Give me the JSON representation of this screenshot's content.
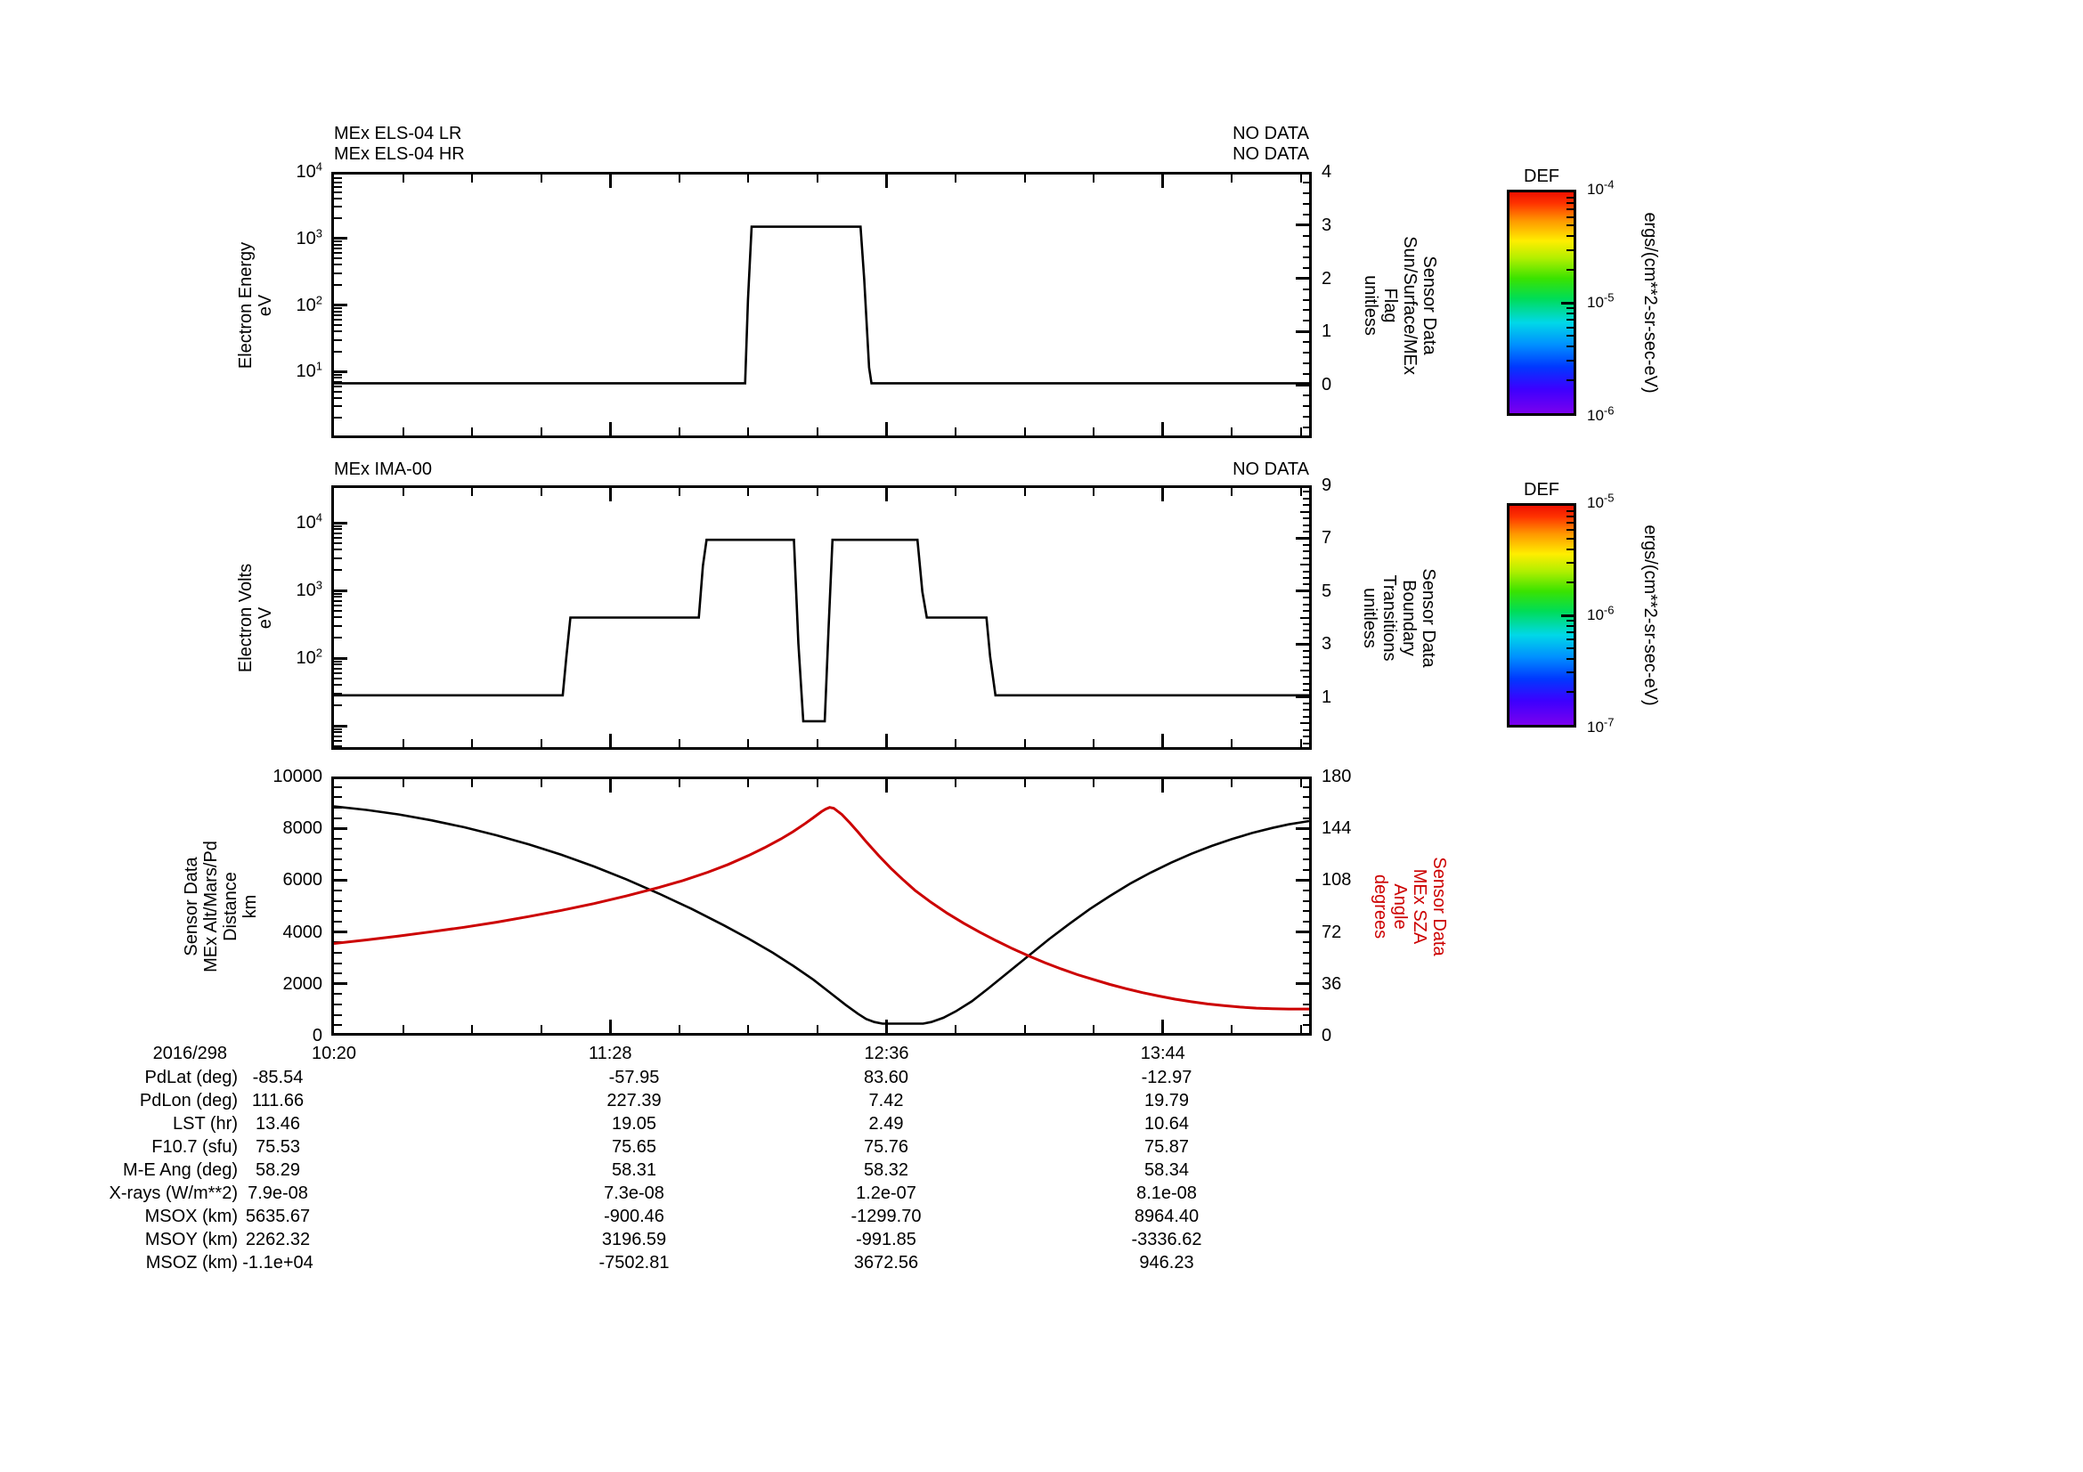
{
  "figure": {
    "background": "#ffffff",
    "colors": {
      "curve_black": "#000000",
      "curve_red": "#cc0000"
    }
  },
  "panels": [
    {
      "titles_left": [
        "MEx ELS-04 LR",
        "MEx ELS-04 HR"
      ],
      "titles_right": [
        "NO DATA",
        "NO DATA"
      ],
      "left_axis": {
        "label_lines": [
          "Electron Energy",
          "eV"
        ],
        "ticks": [
          "10^4",
          "10^3",
          "10^2",
          "10^1"
        ]
      },
      "right_axis": {
        "label_lines": [
          "Sensor Data",
          "Sun/Surface/MEx",
          "Flag",
          "unitless"
        ],
        "ticks": [
          "4",
          "3",
          "2",
          "1",
          "0"
        ],
        "color": "#000000"
      }
    },
    {
      "titles_left": [
        "MEx IMA-00"
      ],
      "titles_right": [
        "NO DATA"
      ],
      "left_axis": {
        "label_lines": [
          "Electron Volts",
          "eV"
        ],
        "ticks": [
          "10^4",
          "10^3",
          "10^2"
        ]
      },
      "right_axis": {
        "label_lines": [
          "Sensor Data",
          "Boundary",
          "Transitions",
          "unitless"
        ],
        "ticks": [
          "9",
          "7",
          "5",
          "3",
          "1"
        ],
        "color": "#000000"
      }
    },
    {
      "titles_left": [],
      "titles_right": [],
      "left_axis": {
        "label_lines": [
          "Sensor Data",
          "MEx Alt/Mars/Pd",
          "Distance",
          "km"
        ],
        "ticks": [
          "10000",
          "8000",
          "6000",
          "4000",
          "2000",
          "0"
        ]
      },
      "right_axis": {
        "label_lines": [
          "Sensor Data",
          "MEx SZA",
          "Angle",
          "degrees"
        ],
        "ticks": [
          "180",
          "144",
          "108",
          "72",
          "36",
          "0"
        ],
        "color": "#cc0000"
      }
    }
  ],
  "x_axis": {
    "date": "2016/298",
    "tick_labels": [
      "10:20",
      "11:28",
      "12:36",
      "13:44"
    ]
  },
  "colorbars": [
    {
      "title": "DEF",
      "ticks": [
        "10^-4",
        "10^-5",
        "10^-6"
      ],
      "units": "ergs/(cm**2-sr-sec-eV)"
    },
    {
      "title": "DEF",
      "ticks": [
        "10^-5",
        "10^-6",
        "10^-7"
      ],
      "units": "ergs/(cm**2-sr-sec-eV)"
    }
  ],
  "table": {
    "date_label": "2016/298",
    "time_columns": [
      "10:20",
      "11:28",
      "12:36",
      "13:44"
    ],
    "rows": [
      {
        "label": "PdLat (deg)",
        "values": [
          "-85.54",
          "-57.95",
          "83.60",
          "-12.97"
        ]
      },
      {
        "label": "PdLon (deg)",
        "values": [
          "111.66",
          "227.39",
          "7.42",
          "19.79"
        ]
      },
      {
        "label": "LST (hr)",
        "values": [
          "13.46",
          "19.05",
          "2.49",
          "10.64"
        ]
      },
      {
        "label": "F10.7 (sfu)",
        "values": [
          "75.53",
          "75.65",
          "75.76",
          "75.87"
        ]
      },
      {
        "label": "M-E Ang (deg)",
        "values": [
          "58.29",
          "58.31",
          "58.32",
          "58.34"
        ]
      },
      {
        "label": "X-rays (W/m**2)",
        "values": [
          "7.9e-08",
          "7.3e-08",
          "1.2e-07",
          "8.1e-08"
        ]
      },
      {
        "label": "MSOX (km)",
        "values": [
          "5635.67",
          "-900.46",
          "-1299.70",
          "8964.40"
        ]
      },
      {
        "label": "MSOY (km)",
        "values": [
          "2262.32",
          "3196.59",
          "-991.85",
          "-3336.62"
        ]
      },
      {
        "label": "MSOZ (km)",
        "values": [
          "-1.1e+04",
          "-7502.81",
          "3672.56",
          "946.23"
        ]
      }
    ]
  },
  "chart_data": [
    {
      "type": "line",
      "title": "MEx ELS-04 Sun/Surface/MEx Flag",
      "x_unit": "minutes after 10:20 (2016/298)",
      "x_range": [
        0,
        240
      ],
      "x_tick_labels": [
        "10:20",
        "11:28",
        "12:36",
        "13:44"
      ],
      "left_axis": {
        "label": "Electron Energy (eV)",
        "scale": "log",
        "range": [
          1,
          10000
        ]
      },
      "right_axis": {
        "label": "Sensor Data Sun/Surface/MEx Flag (unitless)",
        "range": [
          -1,
          4
        ]
      },
      "series": [
        {
          "name": "Sun/Surface/MEx Flag",
          "axis": "right",
          "color": "#000000",
          "points": [
            [
              0,
              0
            ],
            [
              101.2,
              0
            ],
            [
              101.9,
              1.6
            ],
            [
              102.8,
              3
            ],
            [
              129.6,
              3
            ],
            [
              130.5,
              2.0
            ],
            [
              131.7,
              0.3
            ],
            [
              132.3,
              0
            ],
            [
              240,
              0
            ]
          ]
        }
      ]
    },
    {
      "type": "line",
      "title": "MEx IMA-00 Boundary Transitions",
      "x_unit": "minutes after 10:20 (2016/298)",
      "x_range": [
        0,
        240
      ],
      "x_tick_labels": [
        "10:20",
        "11:28",
        "12:36",
        "13:44"
      ],
      "left_axis": {
        "label": "Electron Volts (eV)",
        "scale": "log",
        "range": [
          4.4,
          35000
        ]
      },
      "right_axis": {
        "label": "Sensor Data Boundary Transitions (unitless)",
        "range": [
          -1,
          9
        ]
      },
      "series": [
        {
          "name": "Boundary Transitions",
          "axis": "right",
          "color": "#000000",
          "points": [
            [
              0,
              1
            ],
            [
              56.3,
              1
            ],
            [
              57.2,
              2.5
            ],
            [
              58.2,
              4
            ],
            [
              89.8,
              4
            ],
            [
              90.8,
              6
            ],
            [
              91.7,
              7
            ],
            [
              113.2,
              7
            ],
            [
              114.3,
              3
            ],
            [
              115.5,
              0
            ],
            [
              120.8,
              0
            ],
            [
              121.7,
              3.5
            ],
            [
              122.7,
              7
            ],
            [
              143.6,
              7
            ],
            [
              144.8,
              5
            ],
            [
              145.9,
              4
            ],
            [
              160.6,
              4
            ],
            [
              161.5,
              2.5
            ],
            [
              162.8,
              1
            ],
            [
              240,
              1
            ]
          ]
        }
      ]
    },
    {
      "type": "line",
      "title": "MEx Altitude and Solar Zenith Angle",
      "x_unit": "minutes after 10:20 (2016/298)",
      "x_range": [
        0,
        240
      ],
      "x_tick_labels": [
        "10:20",
        "11:28",
        "12:36",
        "13:44"
      ],
      "left_axis": {
        "label": "Sensor Data MEx Alt/Mars/Pd Distance (km)",
        "range": [
          0,
          10000
        ]
      },
      "right_axis": {
        "label": "Sensor Data MEx SZA Angle (degrees)",
        "range": [
          0,
          180
        ]
      },
      "series": [
        {
          "name": "MEx Alt/Mars/Pd Distance (km)",
          "axis": "left",
          "color": "#000000",
          "points": [
            [
              0,
              8930
            ],
            [
              8,
              8790
            ],
            [
              16,
              8610
            ],
            [
              24,
              8380
            ],
            [
              32,
              8110
            ],
            [
              40,
              7790
            ],
            [
              48,
              7430
            ],
            [
              56,
              7020
            ],
            [
              64,
              6560
            ],
            [
              72,
              6050
            ],
            [
              80,
              5490
            ],
            [
              88,
              4890
            ],
            [
              96,
              4240
            ],
            [
              102,
              3720
            ],
            [
              108,
              3160
            ],
            [
              113,
              2650
            ],
            [
              118,
              2100
            ],
            [
              122,
              1600
            ],
            [
              126,
              1100
            ],
            [
              129,
              750
            ],
            [
              131,
              550
            ],
            [
              133,
              430
            ],
            [
              135,
              370
            ],
            [
              145,
              370
            ],
            [
              147,
              430
            ],
            [
              150,
              600
            ],
            [
              153,
              850
            ],
            [
              157,
              1250
            ],
            [
              161,
              1750
            ],
            [
              166,
              2400
            ],
            [
              171,
              3050
            ],
            [
              176,
              3700
            ],
            [
              181,
              4300
            ],
            [
              186,
              4880
            ],
            [
              191,
              5400
            ],
            [
              196,
              5890
            ],
            [
              201,
              6320
            ],
            [
              206,
              6710
            ],
            [
              211,
              7060
            ],
            [
              216,
              7370
            ],
            [
              221,
              7640
            ],
            [
              226,
              7880
            ],
            [
              231,
              8080
            ],
            [
              235,
              8220
            ],
            [
              238,
              8300
            ],
            [
              240,
              8350
            ]
          ]
        },
        {
          "name": "MEx SZA Angle (degrees)",
          "axis": "right",
          "color": "#cc0000",
          "points": [
            [
              0,
              63.5
            ],
            [
              8,
              66
            ],
            [
              16,
              68.8
            ],
            [
              24,
              71.8
            ],
            [
              32,
              75
            ],
            [
              40,
              78.6
            ],
            [
              48,
              82.6
            ],
            [
              56,
              87
            ],
            [
              64,
              91.8
            ],
            [
              72,
              97.2
            ],
            [
              80,
              103.2
            ],
            [
              86,
              108.2
            ],
            [
              92,
              114
            ],
            [
              97,
              119.5
            ],
            [
              102,
              125.8
            ],
            [
              106,
              131.4
            ],
            [
              110,
              137.6
            ],
            [
              113,
              142.8
            ],
            [
              116,
              148.6
            ],
            [
              118,
              152.8
            ],
            [
              120,
              157
            ],
            [
              121,
              158.8
            ],
            [
              122,
              160
            ],
            [
              123,
              159.4
            ],
            [
              125,
              155
            ],
            [
              127,
              149
            ],
            [
              129,
              142.4
            ],
            [
              131,
              135.6
            ],
            [
              134,
              126
            ],
            [
              137,
              117
            ],
            [
              140,
              108.8
            ],
            [
              143,
              101.2
            ],
            [
              147,
              92.6
            ],
            [
              151,
              84.8
            ],
            [
              155,
              77.8
            ],
            [
              159,
              71.4
            ],
            [
              163,
              65.4
            ],
            [
              167,
              59.8
            ],
            [
              171,
              54.6
            ],
            [
              175,
              49.8
            ],
            [
              179,
              45.4
            ],
            [
              183,
              41.4
            ],
            [
              187,
              37.8
            ],
            [
              191,
              34.4
            ],
            [
              195,
              31.4
            ],
            [
              199,
              28.6
            ],
            [
              203,
              26.2
            ],
            [
              207,
              24
            ],
            [
              211,
              22.2
            ],
            [
              215,
              20.6
            ],
            [
              219,
              19.4
            ],
            [
              223,
              18.4
            ],
            [
              227,
              17.6
            ],
            [
              231,
              17.2
            ],
            [
              235,
              17
            ],
            [
              240,
              17
            ]
          ]
        }
      ]
    }
  ]
}
